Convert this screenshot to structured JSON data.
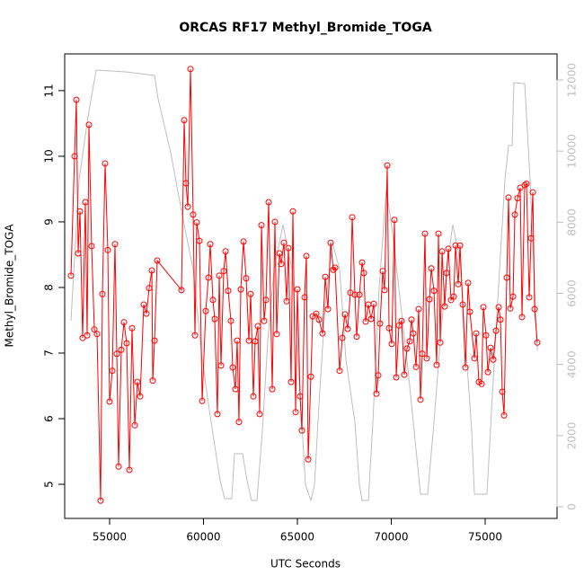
{
  "chart_data": {
    "type": "line",
    "title": "ORCAS RF17 Methyl_Bromide_TOGA",
    "xlabel": "UTC Seconds",
    "ylabel": "Methyl_Bromide_TOGA",
    "xlim": [
      52608,
      78828
    ],
    "xticks": [
      55000,
      60000,
      65000,
      70000,
      75000
    ],
    "ylim": [
      4.48,
      11.56
    ],
    "yticks": [
      5,
      6,
      7,
      8,
      9,
      10,
      11
    ],
    "y2lim": [
      -328,
      12733
    ],
    "y2ticks": [
      0,
      2000,
      4000,
      6000,
      8000,
      10000,
      12000
    ],
    "series": [
      {
        "color": "#bebebe",
        "axis": "y2",
        "markers": false,
        "x": [
          52942,
          53373,
          53851,
          54282,
          55862,
          57393,
          57584,
          58254,
          58876,
          59450,
          59929,
          60407,
          60886,
          61125,
          61507,
          61651,
          62082,
          62321,
          62560,
          62847,
          63134,
          63421,
          63756,
          64235,
          64713,
          65096,
          65431,
          65718,
          65910,
          66149,
          66484,
          66867,
          67250,
          67585,
          68063,
          68302,
          68446,
          68781,
          69020,
          69355,
          69738,
          70073,
          70455,
          70934,
          71412,
          71556,
          71939,
          72274,
          72609,
          72944,
          73279,
          73662,
          73949,
          74284,
          74427,
          75096,
          75383,
          75766,
          76054,
          76245,
          76437,
          76532,
          77106,
          77393,
          77777
        ],
        "values": [
          5230,
          9197,
          10965,
          12279,
          12228,
          12127,
          11470,
          9955,
          8186,
          6670,
          4143,
          2375,
          733,
          227,
          227,
          1491,
          1491,
          733,
          177,
          177,
          2122,
          4649,
          6670,
          7933,
          6670,
          3638,
          606,
          177,
          606,
          2880,
          5659,
          7428,
          6670,
          4143,
          2375,
          606,
          177,
          177,
          2375,
          6165,
          8944,
          7681,
          5912,
          3638,
          1112,
          354,
          354,
          2375,
          4649,
          6670,
          7933,
          6923,
          4649,
          2122,
          354,
          354,
          3133,
          6670,
          9197,
          10157,
          10157,
          11925,
          11900,
          9197,
          4396
        ]
      },
      {
        "color": "#ff0000",
        "axis": "y",
        "markers": true,
        "x": [
          52942,
          53134,
          53230,
          53325,
          53421,
          53564,
          53708,
          53804,
          53899,
          54043,
          54187,
          54330,
          54521,
          54617,
          54761,
          54904,
          55000,
          55144,
          55287,
          55383,
          55479,
          55622,
          55766,
          55909,
          56053,
          56196,
          56340,
          56483,
          56627,
          56818,
          56962,
          57105,
          57249,
          57297,
          57393,
          57536,
          58828,
          58972,
          59067,
          59163,
          59307,
          59450,
          59546,
          59641,
          59785,
          59929,
          60120,
          60264,
          60359,
          60503,
          60598,
          60742,
          60838,
          60933,
          61077,
          61173,
          61316,
          61460,
          61555,
          61699,
          61795,
          61890,
          61986,
          62130,
          62273,
          62417,
          62512,
          62656,
          62752,
          62895,
          62991,
          63087,
          63230,
          63326,
          63469,
          63661,
          63804,
          63900,
          64044,
          64139,
          64283,
          64426,
          64522,
          64666,
          64761,
          64905,
          65001,
          65144,
          65240,
          65383,
          65479,
          65575,
          65718,
          65814,
          66006,
          66149,
          66340,
          66484,
          66628,
          66771,
          66915,
          67010,
          67250,
          67393,
          67537,
          67680,
          67824,
          67920,
          68063,
          68159,
          68302,
          68446,
          68542,
          68637,
          68781,
          68924,
          69068,
          69211,
          69307,
          69403,
          69546,
          69642,
          69786,
          69881,
          70025,
          70168,
          70264,
          70408,
          70551,
          70695,
          70838,
          70982,
          71078,
          71173,
          71317,
          71460,
          71556,
          71652,
          71795,
          71891,
          72035,
          72130,
          72274,
          72417,
          72513,
          72609,
          72705,
          72848,
          72944,
          73039,
          73183,
          73327,
          73422,
          73566,
          73662,
          73805,
          73949,
          74092,
          74188,
          74427,
          74523,
          74666,
          74810,
          74906,
          75049,
          75145,
          75288,
          75432,
          75576,
          75719,
          75815,
          75910,
          76006,
          76150,
          76245,
          76341,
          76485,
          76580,
          76724,
          76867,
          76963,
          77107,
          77202,
          77346,
          77442,
          77537,
          77633,
          77777
        ],
        "values": [
          8.18,
          10.0,
          10.86,
          8.52,
          9.16,
          7.23,
          9.3,
          7.27,
          10.48,
          8.63,
          7.36,
          7.29,
          4.75,
          7.9,
          9.89,
          8.57,
          6.26,
          6.73,
          8.66,
          6.99,
          5.27,
          7.05,
          7.47,
          7.15,
          5.22,
          7.38,
          5.9,
          6.56,
          6.34,
          7.74,
          7.6,
          7.99,
          8.26,
          6.58,
          7.19,
          8.41,
          7.96,
          10.55,
          9.59,
          9.23,
          11.33,
          9.11,
          7.27,
          8.99,
          8.71,
          6.27,
          7.64,
          8.15,
          8.66,
          7.81,
          7.52,
          6.07,
          8.18,
          6.81,
          8.25,
          8.55,
          7.95,
          7.49,
          6.78,
          6.45,
          7.19,
          5.95,
          7.97,
          8.7,
          8.14,
          7.19,
          7.9,
          6.34,
          7.18,
          7.41,
          6.07,
          8.95,
          7.49,
          7.81,
          9.3,
          6.45,
          9.0,
          7.29,
          8.52,
          8.36,
          8.68,
          7.79,
          8.6,
          6.56,
          9.16,
          6.1,
          7.97,
          6.34,
          5.82,
          7.85,
          8.48,
          5.38,
          6.64,
          7.56,
          7.6,
          7.51,
          7.3,
          8.16,
          7.67,
          8.68,
          8.27,
          8.3,
          6.73,
          7.23,
          7.59,
          7.37,
          7.92,
          9.07,
          7.89,
          7.25,
          7.89,
          8.38,
          8.22,
          7.48,
          7.74,
          7.52,
          7.75,
          6.38,
          6.66,
          7.45,
          8.25,
          7.96,
          9.86,
          7.38,
          7.14,
          9.03,
          6.63,
          7.42,
          7.49,
          6.67,
          7.07,
          7.18,
          7.51,
          7.3,
          6.79,
          7.67,
          6.29,
          6.99,
          8.82,
          6.92,
          7.82,
          8.29,
          7.95,
          6.82,
          8.82,
          7.16,
          8.55,
          7.71,
          8.22,
          8.59,
          7.81,
          7.86,
          8.64,
          8.05,
          8.64,
          7.74,
          6.78,
          8.07,
          7.63,
          6.92,
          7.3,
          6.56,
          6.53,
          7.7,
          7.27,
          6.71,
          7.08,
          6.9,
          7.34,
          7.7,
          7.51,
          6.41,
          6.05,
          8.15,
          9.37,
          7.68,
          7.86,
          9.11,
          9.36,
          9.52,
          7.55,
          9.56,
          9.58,
          7.85,
          8.75,
          9.45,
          7.67,
          7.16
        ]
      }
    ]
  }
}
